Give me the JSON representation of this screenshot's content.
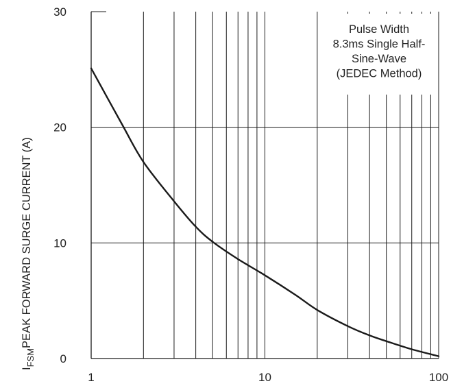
{
  "chart_data": {
    "type": "line",
    "title": "",
    "xlabel": "",
    "ylabel": {
      "main": "I",
      "subscript": "FSM",
      "rest": "PEAK FORWARD SURGE CURRENT (A)"
    },
    "x_scale": "log",
    "xlim": [
      1,
      100
    ],
    "ylim": [
      0,
      30
    ],
    "grid": true,
    "x_ticks": [
      1,
      10,
      100
    ],
    "x_tick_labels": [
      "1",
      "10",
      "100"
    ],
    "y_ticks": [
      0,
      10,
      20,
      30
    ],
    "y_tick_labels": [
      "0",
      "10",
      "20",
      "30"
    ],
    "annotation": [
      "Pulse Width",
      "8.3ms Single Half-",
      "Sine-Wave",
      "(JEDEC Method)"
    ],
    "annotation_position": "top-right",
    "series": [
      {
        "x": [
          1,
          1.5,
          2,
          3,
          4,
          5,
          7,
          10,
          15,
          20,
          30,
          40,
          50,
          70,
          100
        ],
        "y": [
          25.1,
          20.3,
          17.0,
          13.6,
          11.4,
          10.1,
          8.6,
          7.2,
          5.5,
          4.2,
          2.8,
          2.0,
          1.5,
          0.8,
          0.2
        ]
      }
    ],
    "colors": {
      "curve": "#1a1a1a",
      "grid": "#1a1a1a",
      "text": "#222222"
    }
  }
}
